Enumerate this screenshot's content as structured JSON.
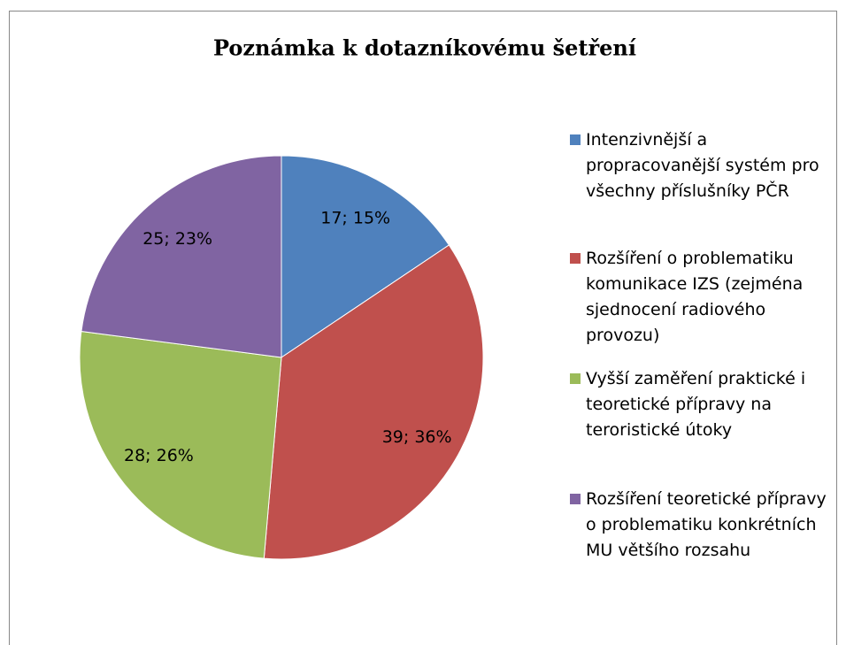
{
  "chart_data": {
    "type": "pie",
    "title": "Poznámka k dotazníkovému šetření",
    "categories": [
      "Intenzivnější a propracovanější systém pro všechny příslušníky PČR",
      "Rozšíření o problematiku komunikace IZS (zejména sjednocení radiového provozu)",
      "Vyšší zaměření praktické i teoretické přípravy na teroristické útoky",
      "Rozšíření teoretické přípravy o problematiku konkrétních MU většího rozsahu"
    ],
    "values": [
      17,
      39,
      28,
      25
    ],
    "value_labels": [
      "17; 15%",
      "39; 36%",
      "28; 26%",
      "25; 23%"
    ],
    "colors": [
      "#4f81bd",
      "#c0504d",
      "#9bbb59",
      "#8064a2"
    ],
    "legend": "right"
  }
}
